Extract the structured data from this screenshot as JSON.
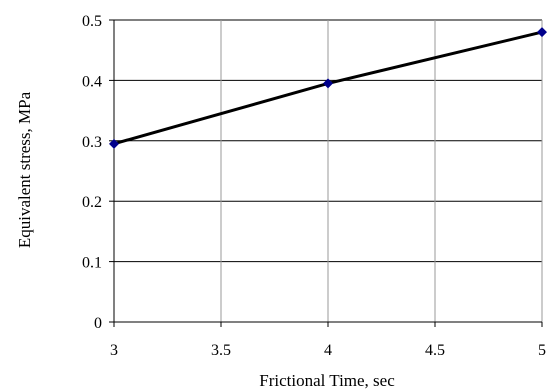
{
  "chart_data": {
    "type": "line",
    "title": "",
    "xlabel": "Frictional Time, sec",
    "ylabel": "Equivalent stress, MPa",
    "xlim": [
      3,
      5
    ],
    "ylim": [
      0,
      0.5
    ],
    "x_ticks": [
      "3",
      "3.5",
      "4",
      "4.5",
      "5"
    ],
    "y_ticks": [
      "0",
      "0.1",
      "0.2",
      "0.3",
      "0.4",
      "0.5"
    ],
    "grid": true,
    "legend": "none",
    "series": [
      {
        "x": [
          3,
          4,
          5
        ],
        "y": [
          0.295,
          0.395,
          0.48
        ],
        "line_color": "#000000",
        "marker": "diamond",
        "marker_color": "#00008b"
      }
    ]
  }
}
